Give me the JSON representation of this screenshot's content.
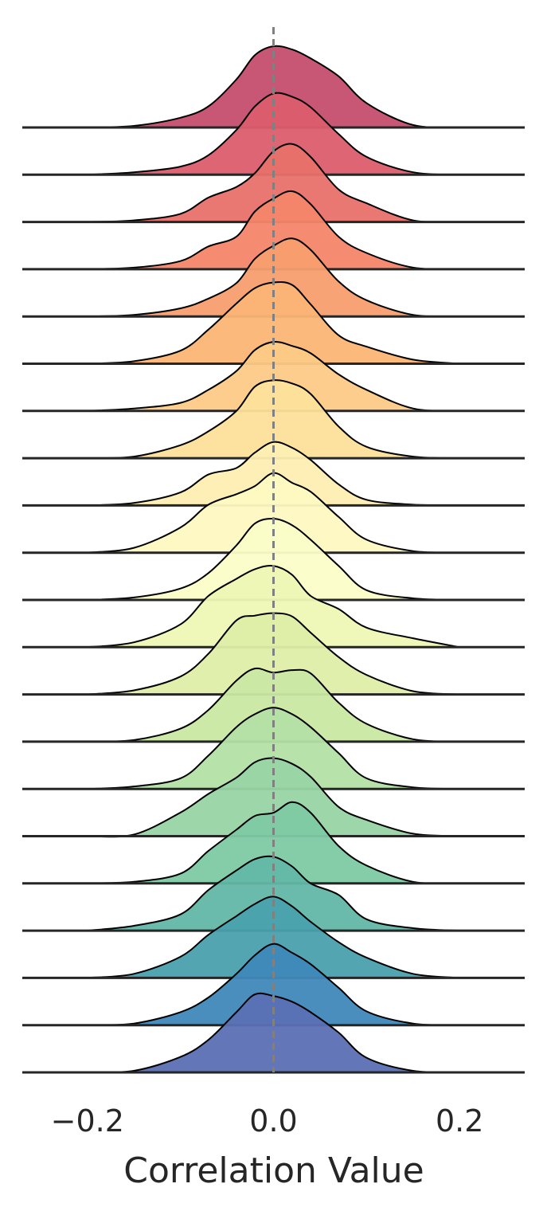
{
  "chart_data": {
    "type": "area",
    "title": "",
    "xlabel": "Correlation Value",
    "ylabel": "",
    "xlim": [
      -0.27,
      0.27
    ],
    "xticks": [
      -0.2,
      0.0,
      0.2
    ],
    "xtick_labels": [
      "−0.2",
      "0.0",
      "0.2"
    ],
    "reference_line": {
      "x": 0.0,
      "style": "dashed",
      "color": "#808080"
    },
    "baseline_color": "#262626",
    "grid": false,
    "legend": "none",
    "palette": "Spectral",
    "x_grid": [
      -0.2,
      -0.15,
      -0.1,
      -0.07,
      -0.04,
      -0.02,
      0.0,
      0.02,
      0.04,
      0.07,
      0.1,
      0.15,
      0.2
    ],
    "series": [
      {
        "color": "#c44e6e",
        "density": [
          0.0,
          0.02,
          0.12,
          0.26,
          0.59,
          0.89,
          1.0,
          0.96,
          0.85,
          0.63,
          0.3,
          0.03,
          0.0
        ]
      },
      {
        "color": "#dc5d6d",
        "density": [
          0.0,
          0.03,
          0.1,
          0.24,
          0.55,
          0.84,
          1.0,
          0.96,
          0.83,
          0.5,
          0.22,
          0.03,
          0.0
        ]
      },
      {
        "color": "#e8716a",
        "density": [
          0.0,
          0.02,
          0.1,
          0.3,
          0.43,
          0.6,
          0.87,
          0.96,
          0.8,
          0.4,
          0.23,
          0.02,
          0.0
        ]
      },
      {
        "color": "#f4866a",
        "density": [
          0.0,
          0.02,
          0.1,
          0.28,
          0.4,
          0.71,
          0.87,
          0.96,
          0.8,
          0.4,
          0.2,
          0.02,
          0.0
        ]
      },
      {
        "color": "#f89e6e",
        "density": [
          0.0,
          0.02,
          0.1,
          0.22,
          0.41,
          0.71,
          0.87,
          0.96,
          0.82,
          0.43,
          0.2,
          0.02,
          0.0
        ]
      },
      {
        "color": "#fbb575",
        "density": [
          0.0,
          0.03,
          0.16,
          0.42,
          0.74,
          0.93,
          1.0,
          0.97,
          0.73,
          0.35,
          0.21,
          0.05,
          0.0
        ]
      },
      {
        "color": "#fcca86",
        "density": [
          0.0,
          0.03,
          0.1,
          0.26,
          0.49,
          0.75,
          0.85,
          0.8,
          0.71,
          0.45,
          0.26,
          0.03,
          0.0
        ]
      },
      {
        "color": "#fde09a",
        "density": [
          0.0,
          0.02,
          0.16,
          0.33,
          0.58,
          0.88,
          0.96,
          0.92,
          0.79,
          0.39,
          0.14,
          0.02,
          0.0
        ]
      },
      {
        "color": "#fdeeb2",
        "density": [
          0.0,
          0.03,
          0.16,
          0.38,
          0.46,
          0.65,
          0.78,
          0.71,
          0.56,
          0.26,
          0.07,
          0.01,
          0.0
        ]
      },
      {
        "color": "#fef8c2",
        "density": [
          0.0,
          0.06,
          0.31,
          0.59,
          0.72,
          0.82,
          0.98,
          0.86,
          0.75,
          0.44,
          0.16,
          0.02,
          0.0
        ]
      },
      {
        "color": "#fbfdc8",
        "density": [
          0.0,
          0.03,
          0.14,
          0.33,
          0.67,
          0.94,
          1.0,
          0.92,
          0.74,
          0.42,
          0.12,
          0.02,
          0.0
        ]
      },
      {
        "color": "#eef7b5",
        "density": [
          0.0,
          0.06,
          0.28,
          0.63,
          0.84,
          0.96,
          1.0,
          0.89,
          0.63,
          0.47,
          0.24,
          0.11,
          0.0
        ]
      },
      {
        "color": "#deeea6",
        "density": [
          0.0,
          0.05,
          0.22,
          0.5,
          0.91,
          0.97,
          1.0,
          0.96,
          0.76,
          0.46,
          0.24,
          0.04,
          0.0
        ]
      },
      {
        "color": "#c9e8a3",
        "density": [
          0.0,
          0.02,
          0.16,
          0.39,
          0.75,
          0.9,
          0.85,
          0.88,
          0.84,
          0.48,
          0.22,
          0.03,
          0.0
        ]
      },
      {
        "color": "#b3e0a5",
        "density": [
          0.0,
          0.03,
          0.13,
          0.41,
          0.76,
          0.92,
          1.0,
          0.92,
          0.76,
          0.44,
          0.13,
          0.02,
          0.0
        ]
      },
      {
        "color": "#98d4a4",
        "density": [
          0.0,
          0.02,
          0.29,
          0.52,
          0.72,
          0.91,
          0.96,
          0.89,
          0.73,
          0.36,
          0.2,
          0.03,
          0.0
        ]
      },
      {
        "color": "#7ec9a3",
        "density": [
          0.0,
          0.02,
          0.12,
          0.4,
          0.66,
          0.83,
          0.87,
          1.0,
          0.87,
          0.46,
          0.22,
          0.02,
          0.0
        ]
      },
      {
        "color": "#62b7a7",
        "density": [
          0.0,
          0.06,
          0.2,
          0.5,
          0.74,
          0.88,
          0.91,
          0.79,
          0.58,
          0.44,
          0.14,
          0.03,
          0.0
        ]
      },
      {
        "color": "#4aa1ad",
        "density": [
          0.0,
          0.05,
          0.26,
          0.53,
          0.76,
          0.91,
          1.0,
          0.88,
          0.69,
          0.44,
          0.25,
          0.05,
          0.0
        ]
      },
      {
        "color": "#3f88b9",
        "density": [
          0.0,
          0.02,
          0.16,
          0.34,
          0.63,
          0.86,
          1.0,
          0.89,
          0.75,
          0.46,
          0.17,
          0.02,
          0.0
        ]
      },
      {
        "color": "#5b70b4",
        "density": [
          0.0,
          0.02,
          0.19,
          0.4,
          0.74,
          0.96,
          0.94,
          0.87,
          0.74,
          0.49,
          0.18,
          0.02,
          0.0
        ]
      }
    ]
  }
}
